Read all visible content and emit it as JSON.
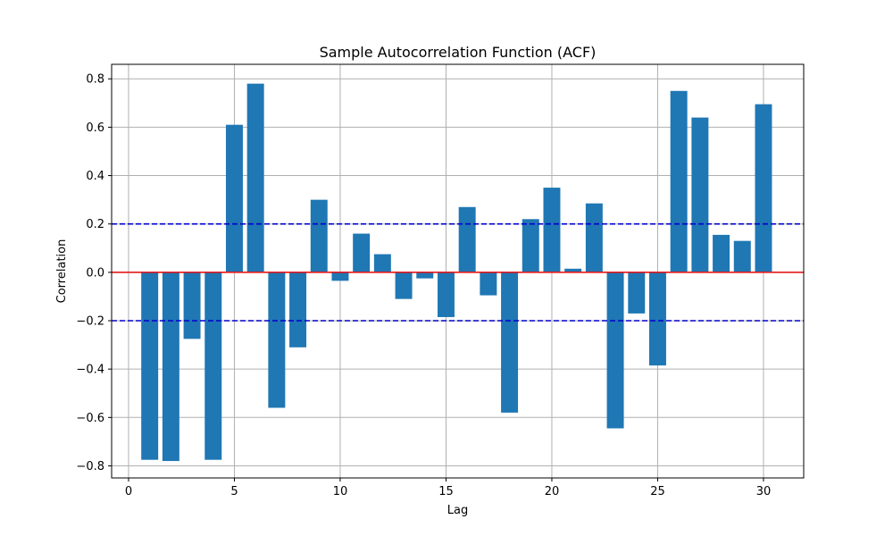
{
  "chart_data": {
    "type": "bar",
    "title": "Sample Autocorrelation Function (ACF)",
    "xlabel": "Lag",
    "ylabel": "Correlation",
    "xlim": [
      -0.8,
      31.9
    ],
    "ylim": [
      -0.85,
      0.86
    ],
    "x_ticks": [
      0,
      5,
      10,
      15,
      20,
      25,
      30
    ],
    "y_ticks": [
      -0.8,
      -0.6,
      -0.4,
      -0.2,
      0.0,
      0.2,
      0.4,
      0.6,
      0.8
    ],
    "x_tick_labels": [
      "0",
      "5",
      "10",
      "15",
      "20",
      "25",
      "30"
    ],
    "y_tick_labels": [
      "−0.8",
      "−0.6",
      "−0.4",
      "−0.2",
      "0.0",
      "0.2",
      "0.4",
      "0.6",
      "0.8"
    ],
    "grid": true,
    "lags": [
      1,
      2,
      3,
      4,
      5,
      6,
      7,
      8,
      9,
      10,
      11,
      12,
      13,
      14,
      15,
      16,
      17,
      18,
      19,
      20,
      21,
      22,
      23,
      24,
      25,
      26,
      27,
      28,
      29,
      30
    ],
    "values": [
      -0.775,
      -0.78,
      -0.275,
      -0.775,
      0.61,
      0.78,
      -0.56,
      -0.31,
      0.3,
      -0.035,
      0.16,
      0.075,
      -0.11,
      -0.025,
      -0.185,
      0.27,
      -0.095,
      -0.58,
      0.22,
      0.35,
      0.015,
      0.285,
      -0.645,
      -0.17,
      -0.385,
      0.75,
      0.64,
      0.155,
      0.13,
      0.695
    ],
    "reference_lines": [
      {
        "value": 0.0,
        "style": "solid",
        "color": "#e41a1c"
      },
      {
        "value": 0.2,
        "style": "dashed",
        "color": "#0000cc"
      },
      {
        "value": -0.2,
        "style": "dashed",
        "color": "#0000cc"
      }
    ],
    "bar_color": "#1f77b4"
  }
}
